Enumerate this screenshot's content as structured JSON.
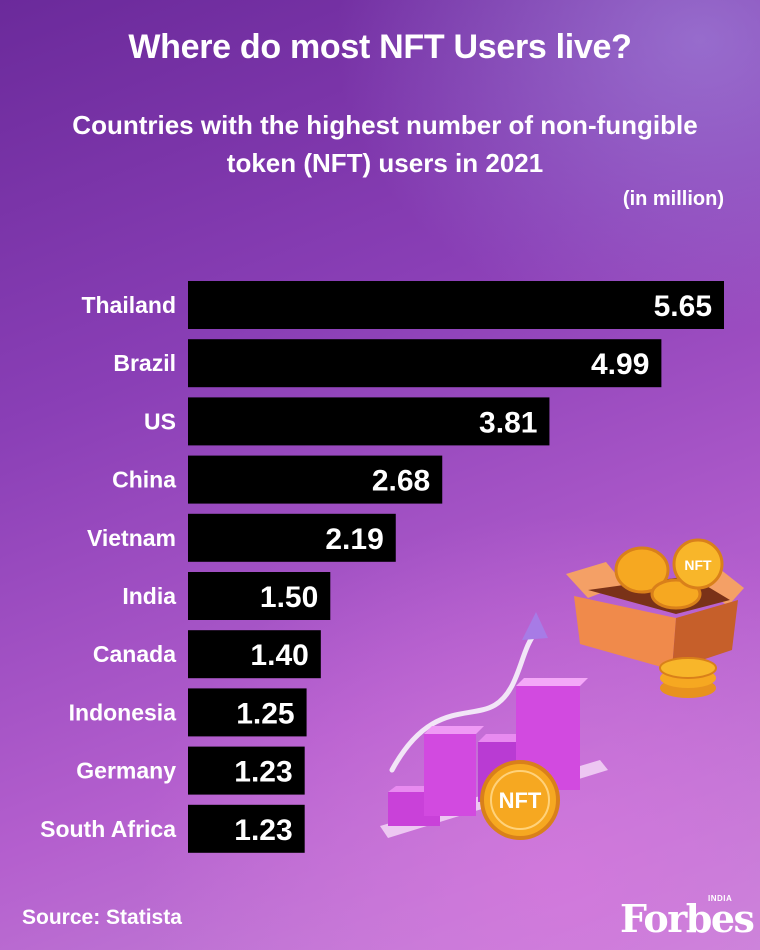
{
  "chart_data": {
    "type": "bar",
    "orientation": "horizontal",
    "title": "Where do most NFT Users live?",
    "subtitle": "Countries with the highest number of non-fungible token (NFT) users in 2021",
    "unit": "(in million)",
    "categories": [
      "Thailand",
      "Brazil",
      "US",
      "China",
      "Vietnam",
      "India",
      "Canada",
      "Indonesia",
      "Germany",
      "South Africa"
    ],
    "values": [
      5.65,
      4.99,
      3.81,
      2.68,
      2.19,
      1.5,
      1.4,
      1.25,
      1.23,
      1.23
    ],
    "value_labels": [
      "5.65",
      "4.99",
      "3.81",
      "2.68",
      "2.19",
      "1.50",
      "1.40",
      "1.25",
      "1.23",
      "1.23"
    ],
    "xlim": [
      0,
      5.65
    ],
    "xlabel": "",
    "ylabel": ""
  },
  "footer": {
    "source": "Source: Statista",
    "logo": "Forbes",
    "logo_sub": "INDIA"
  },
  "illustration": {
    "nft_coin_label": "NFT",
    "box_coin_label": "NFT"
  },
  "colors": {
    "bar": "#000000",
    "value_text": "#ffffff",
    "coin": "#f6a821",
    "coin_dark": "#d9801a",
    "box": "#f08a4b",
    "box_dark": "#c65f2a",
    "mini_bar": "#d24ae0"
  }
}
